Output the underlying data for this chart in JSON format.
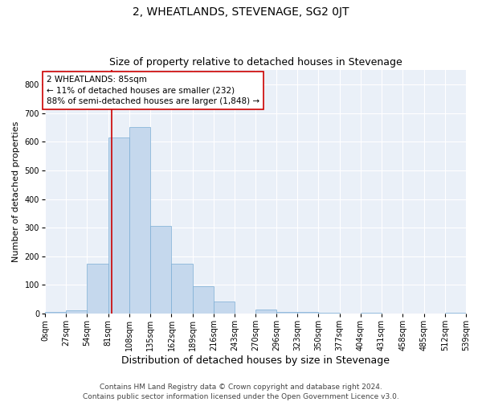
{
  "title": "2, WHEATLANDS, STEVENAGE, SG2 0JT",
  "subtitle": "Size of property relative to detached houses in Stevenage",
  "xlabel": "Distribution of detached houses by size in Stevenage",
  "ylabel": "Number of detached properties",
  "bin_edges": [
    0,
    27,
    54,
    81,
    108,
    135,
    162,
    189,
    216,
    243,
    270,
    296,
    323,
    350,
    377,
    404,
    431,
    458,
    485,
    512,
    539
  ],
  "bar_heights": [
    5,
    12,
    175,
    615,
    650,
    305,
    175,
    95,
    42,
    0,
    15,
    7,
    5,
    3,
    0,
    2,
    0,
    0,
    0,
    2
  ],
  "bar_color": "#c5d8ed",
  "bar_edge_color": "#7aadd4",
  "property_size": 85,
  "vline_color": "#cc0000",
  "annotation_text": "2 WHEATLANDS: 85sqm\n← 11% of detached houses are smaller (232)\n88% of semi-detached houses are larger (1,848) →",
  "annotation_box_color": "white",
  "annotation_box_edge_color": "#cc0000",
  "ylim": [
    0,
    850
  ],
  "yticks": [
    0,
    100,
    200,
    300,
    400,
    500,
    600,
    700,
    800
  ],
  "background_color": "#eaf0f8",
  "grid_color": "#ffffff",
  "footer_text": "Contains HM Land Registry data © Crown copyright and database right 2024.\nContains public sector information licensed under the Open Government Licence v3.0.",
  "title_fontsize": 10,
  "subtitle_fontsize": 9,
  "xlabel_fontsize": 9,
  "ylabel_fontsize": 8,
  "tick_fontsize": 7,
  "annotation_fontsize": 7.5,
  "footer_fontsize": 6.5
}
